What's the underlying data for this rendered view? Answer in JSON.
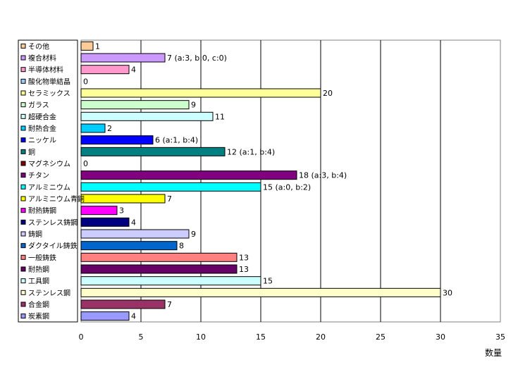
{
  "chart_data": {
    "type": "bar",
    "orientation": "horizontal",
    "categories": [
      "その他",
      "複合材料",
      "半導体材料",
      "酸化物単結晶",
      "セラミックス",
      "ガラス",
      "超硬合金",
      "耐熱合金",
      "ニッケル",
      "銅",
      "マグネシウム",
      "チタン",
      "アルミニウム",
      "アルミニウム青銅",
      "耐熱鋳鋼",
      "ステンレス鋳鋼",
      "鋳鋼",
      "ダクタイル鋳鉄",
      "一般鋳鉄",
      "耐熱鋼",
      "工具鋼",
      "ステンレス鋼",
      "合金鋼",
      "炭素鋼"
    ],
    "values": [
      1,
      7,
      4,
      0,
      20,
      9,
      11,
      2,
      6,
      12,
      0,
      18,
      15,
      7,
      3,
      4,
      9,
      8,
      13,
      13,
      15,
      30,
      7,
      4
    ],
    "value_labels": [
      "1",
      "7 (a:3, b:0, c:0)",
      "4",
      "0",
      "20",
      "9",
      "11",
      "2",
      "6 (a:1, b:4)",
      "12 (a:1, b:4)",
      "0",
      "18 (a:3, b:4)",
      "15 (a:0, b:2)",
      "7",
      "3",
      "4",
      "9",
      "8",
      "13",
      "13",
      "15",
      "30",
      "7",
      "4"
    ],
    "colors": [
      "#FFCC99",
      "#CC99FF",
      "#FF99CC",
      "#99CCFF",
      "#FFFF99",
      "#CCFFCC",
      "#CCFFFF",
      "#00CCFF",
      "#0000FF",
      "#008080",
      "#800000",
      "#800080",
      "#00FFFF",
      "#FFFF00",
      "#FF00FF",
      "#000080",
      "#CCCCFF",
      "#0066CC",
      "#FF8080",
      "#660066",
      "#CCFFFF",
      "#FFFFCC",
      "#993366",
      "#9999FF"
    ],
    "xlim": [
      0,
      35
    ],
    "x_ticks": [
      "0",
      "5",
      "10",
      "15",
      "20",
      "25",
      "30",
      "35"
    ],
    "xlabel": "数量",
    "legend": "left",
    "grid": "vertical"
  }
}
